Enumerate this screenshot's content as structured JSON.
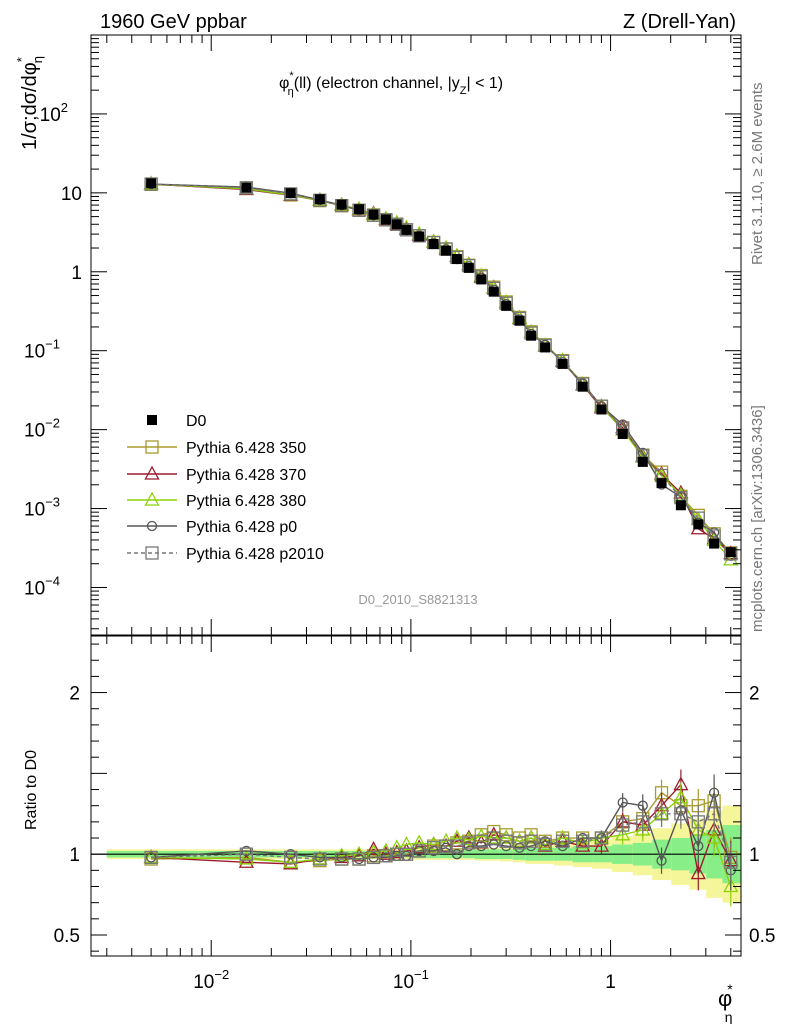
{
  "header": {
    "left": "1960 GeV ppbar",
    "right": "Z (Drell-Yan)"
  },
  "side": {
    "rivet": "Rivet 3.1.10, ≥ 2.6M events",
    "mcplots": "mcplots.cern.ch [arXiv:1306.3436]"
  },
  "analysis_id": "D0_2010_S8821313",
  "plot_title": {
    "main": "φ",
    "sup": "*",
    "sub": "η",
    "rest": "(ll) (electron channel, |y",
    "sub2": "Z",
    "end": "| < 1)"
  },
  "ylabel_main": "1/σ;dσ/dφ",
  "ylabel_sup": "*",
  "ylabel_sub": "η",
  "ylabel_ratio": "Ratio to D0",
  "xlabel": {
    "main": "φ",
    "sup": "*",
    "sub": "η"
  },
  "colors": {
    "data": "#000000",
    "p350": "#a89c2e",
    "p370": "#9c1b2f",
    "p380": "#8cd20a",
    "p0": "#555555",
    "p2010": "#777777",
    "band_yellow": "#f5f59a",
    "band_green": "#88ee88"
  },
  "chart_data": {
    "type": "line",
    "xscale": "log",
    "yscale": "log",
    "xlim": [
      0.0025,
      4.5
    ],
    "ylim": [
      2.5e-05,
      1000
    ],
    "ratio_ylim": [
      0.37,
      2.35
    ],
    "x_ticks": [
      {
        "v": 0.01,
        "b": "10",
        "e": "−2"
      },
      {
        "v": 0.1,
        "b": "10",
        "e": "−1"
      },
      {
        "v": 1,
        "b": "1",
        "e": ""
      }
    ],
    "y_ticks": [
      {
        "v": 0.0001,
        "b": "10",
        "e": "−4"
      },
      {
        "v": 0.001,
        "b": "10",
        "e": "−3"
      },
      {
        "v": 0.01,
        "b": "10",
        "e": "−2"
      },
      {
        "v": 0.1,
        "b": "10",
        "e": "−1"
      },
      {
        "v": 1,
        "b": "1",
        "e": ""
      },
      {
        "v": 10,
        "b": "10",
        "e": ""
      },
      {
        "v": 100,
        "b": "10",
        "e": "2"
      }
    ],
    "ratio_ticks": [
      {
        "v": 0.5,
        "label": "0.5"
      },
      {
        "v": 1,
        "label": "1"
      },
      {
        "v": 2,
        "label": "2"
      }
    ],
    "x": [
      0.005,
      0.015,
      0.025,
      0.035,
      0.045,
      0.055,
      0.065,
      0.075,
      0.085,
      0.095,
      0.11,
      0.13,
      0.15,
      0.17,
      0.195,
      0.225,
      0.26,
      0.3,
      0.35,
      0.4,
      0.47,
      0.575,
      0.725,
      0.9,
      1.15,
      1.45,
      1.8,
      2.25,
      2.75,
      3.3,
      4.0
    ],
    "data_values": [
      13.2,
      11.6,
      9.9,
      8.3,
      7.1,
      6.2,
      5.3,
      4.6,
      4.0,
      3.4,
      2.8,
      2.25,
      1.85,
      1.45,
      1.12,
      0.8,
      0.56,
      0.37,
      0.24,
      0.155,
      0.11,
      0.068,
      0.035,
      0.018,
      0.0088,
      0.0039,
      0.0021,
      0.0011,
      0.00063,
      0.00036,
      0.00028
    ],
    "band_green_half": [
      0.02,
      0.02,
      0.02,
      0.02,
      0.02,
      0.02,
      0.02,
      0.02,
      0.02,
      0.02,
      0.025,
      0.025,
      0.025,
      0.025,
      0.025,
      0.03,
      0.03,
      0.03,
      0.035,
      0.04,
      0.04,
      0.04,
      0.05,
      0.05,
      0.06,
      0.07,
      0.09,
      0.1,
      0.12,
      0.15,
      0.18
    ],
    "band_yellow_half": [
      0.03,
      0.03,
      0.03,
      0.03,
      0.03,
      0.03,
      0.03,
      0.03,
      0.03,
      0.03,
      0.035,
      0.035,
      0.035,
      0.035,
      0.035,
      0.04,
      0.04,
      0.045,
      0.05,
      0.06,
      0.06,
      0.07,
      0.08,
      0.09,
      0.11,
      0.13,
      0.16,
      0.19,
      0.22,
      0.27,
      0.3
    ],
    "series": [
      {
        "name": "D0",
        "key": "data",
        "marker": "filled-square"
      },
      {
        "name": "Pythia 6.428 350",
        "key": "p350",
        "marker": "open-square",
        "line": "solid",
        "ratio": [
          0.97,
          0.98,
          0.95,
          0.96,
          0.97,
          0.97,
          0.99,
          0.99,
          1.0,
          1.0,
          1.02,
          1.05,
          1.05,
          1.07,
          1.08,
          1.12,
          1.14,
          1.12,
          1.1,
          1.12,
          1.08,
          1.1,
          1.1,
          1.1,
          1.2,
          1.22,
          1.38,
          1.3,
          1.3,
          1.33,
          0.98
        ]
      },
      {
        "name": "Pythia 6.428 370",
        "key": "p370",
        "marker": "open-triangle",
        "line": "solid",
        "ratio": [
          0.98,
          0.95,
          0.94,
          0.97,
          0.98,
          0.99,
          1.03,
          1.0,
          1.01,
          1.02,
          1.04,
          1.06,
          1.05,
          1.08,
          1.1,
          1.07,
          1.12,
          1.1,
          1.08,
          1.1,
          1.05,
          1.08,
          1.05,
          1.05,
          1.2,
          1.18,
          1.3,
          1.43,
          0.88,
          1.15,
          0.96
        ]
      },
      {
        "name": "Pythia 6.428 380",
        "key": "p380",
        "marker": "open-triangle",
        "line": "solid",
        "ratio": [
          0.98,
          0.97,
          0.95,
          0.97,
          0.99,
          1.0,
          1.01,
          1.02,
          1.04,
          1.06,
          1.07,
          1.06,
          1.08,
          1.1,
          1.09,
          1.11,
          1.1,
          1.1,
          1.08,
          1.1,
          1.06,
          1.1,
          1.07,
          1.1,
          1.12,
          1.15,
          1.25,
          1.35,
          1.15,
          1.1,
          0.8
        ]
      },
      {
        "name": "Pythia 6.428 p0",
        "key": "p0",
        "marker": "open-circle",
        "line": "solid",
        "ratio": [
          0.98,
          1.02,
          1.0,
          0.98,
          0.98,
          0.97,
          0.98,
          0.98,
          0.99,
          0.99,
          1.02,
          1.02,
          1.04,
          1.0,
          1.05,
          1.05,
          1.06,
          1.05,
          1.04,
          1.05,
          1.08,
          1.05,
          1.1,
          1.1,
          1.32,
          1.3,
          0.96,
          1.27,
          1.05,
          1.38,
          0.9
        ]
      },
      {
        "name": "Pythia 6.428 p2010",
        "key": "p2010",
        "marker": "open-square",
        "line": "dashed",
        "ratio": [
          0.98,
          1.0,
          0.98,
          0.97,
          0.97,
          0.97,
          0.98,
          0.99,
          1.0,
          1.0,
          1.02,
          1.04,
          1.05,
          1.05,
          1.07,
          1.08,
          1.1,
          1.08,
          1.07,
          1.08,
          1.06,
          1.08,
          1.08,
          1.1,
          1.18,
          1.2,
          1.25,
          1.25,
          1.2,
          1.25,
          0.95
        ]
      }
    ],
    "legend_position": "lower-left"
  }
}
